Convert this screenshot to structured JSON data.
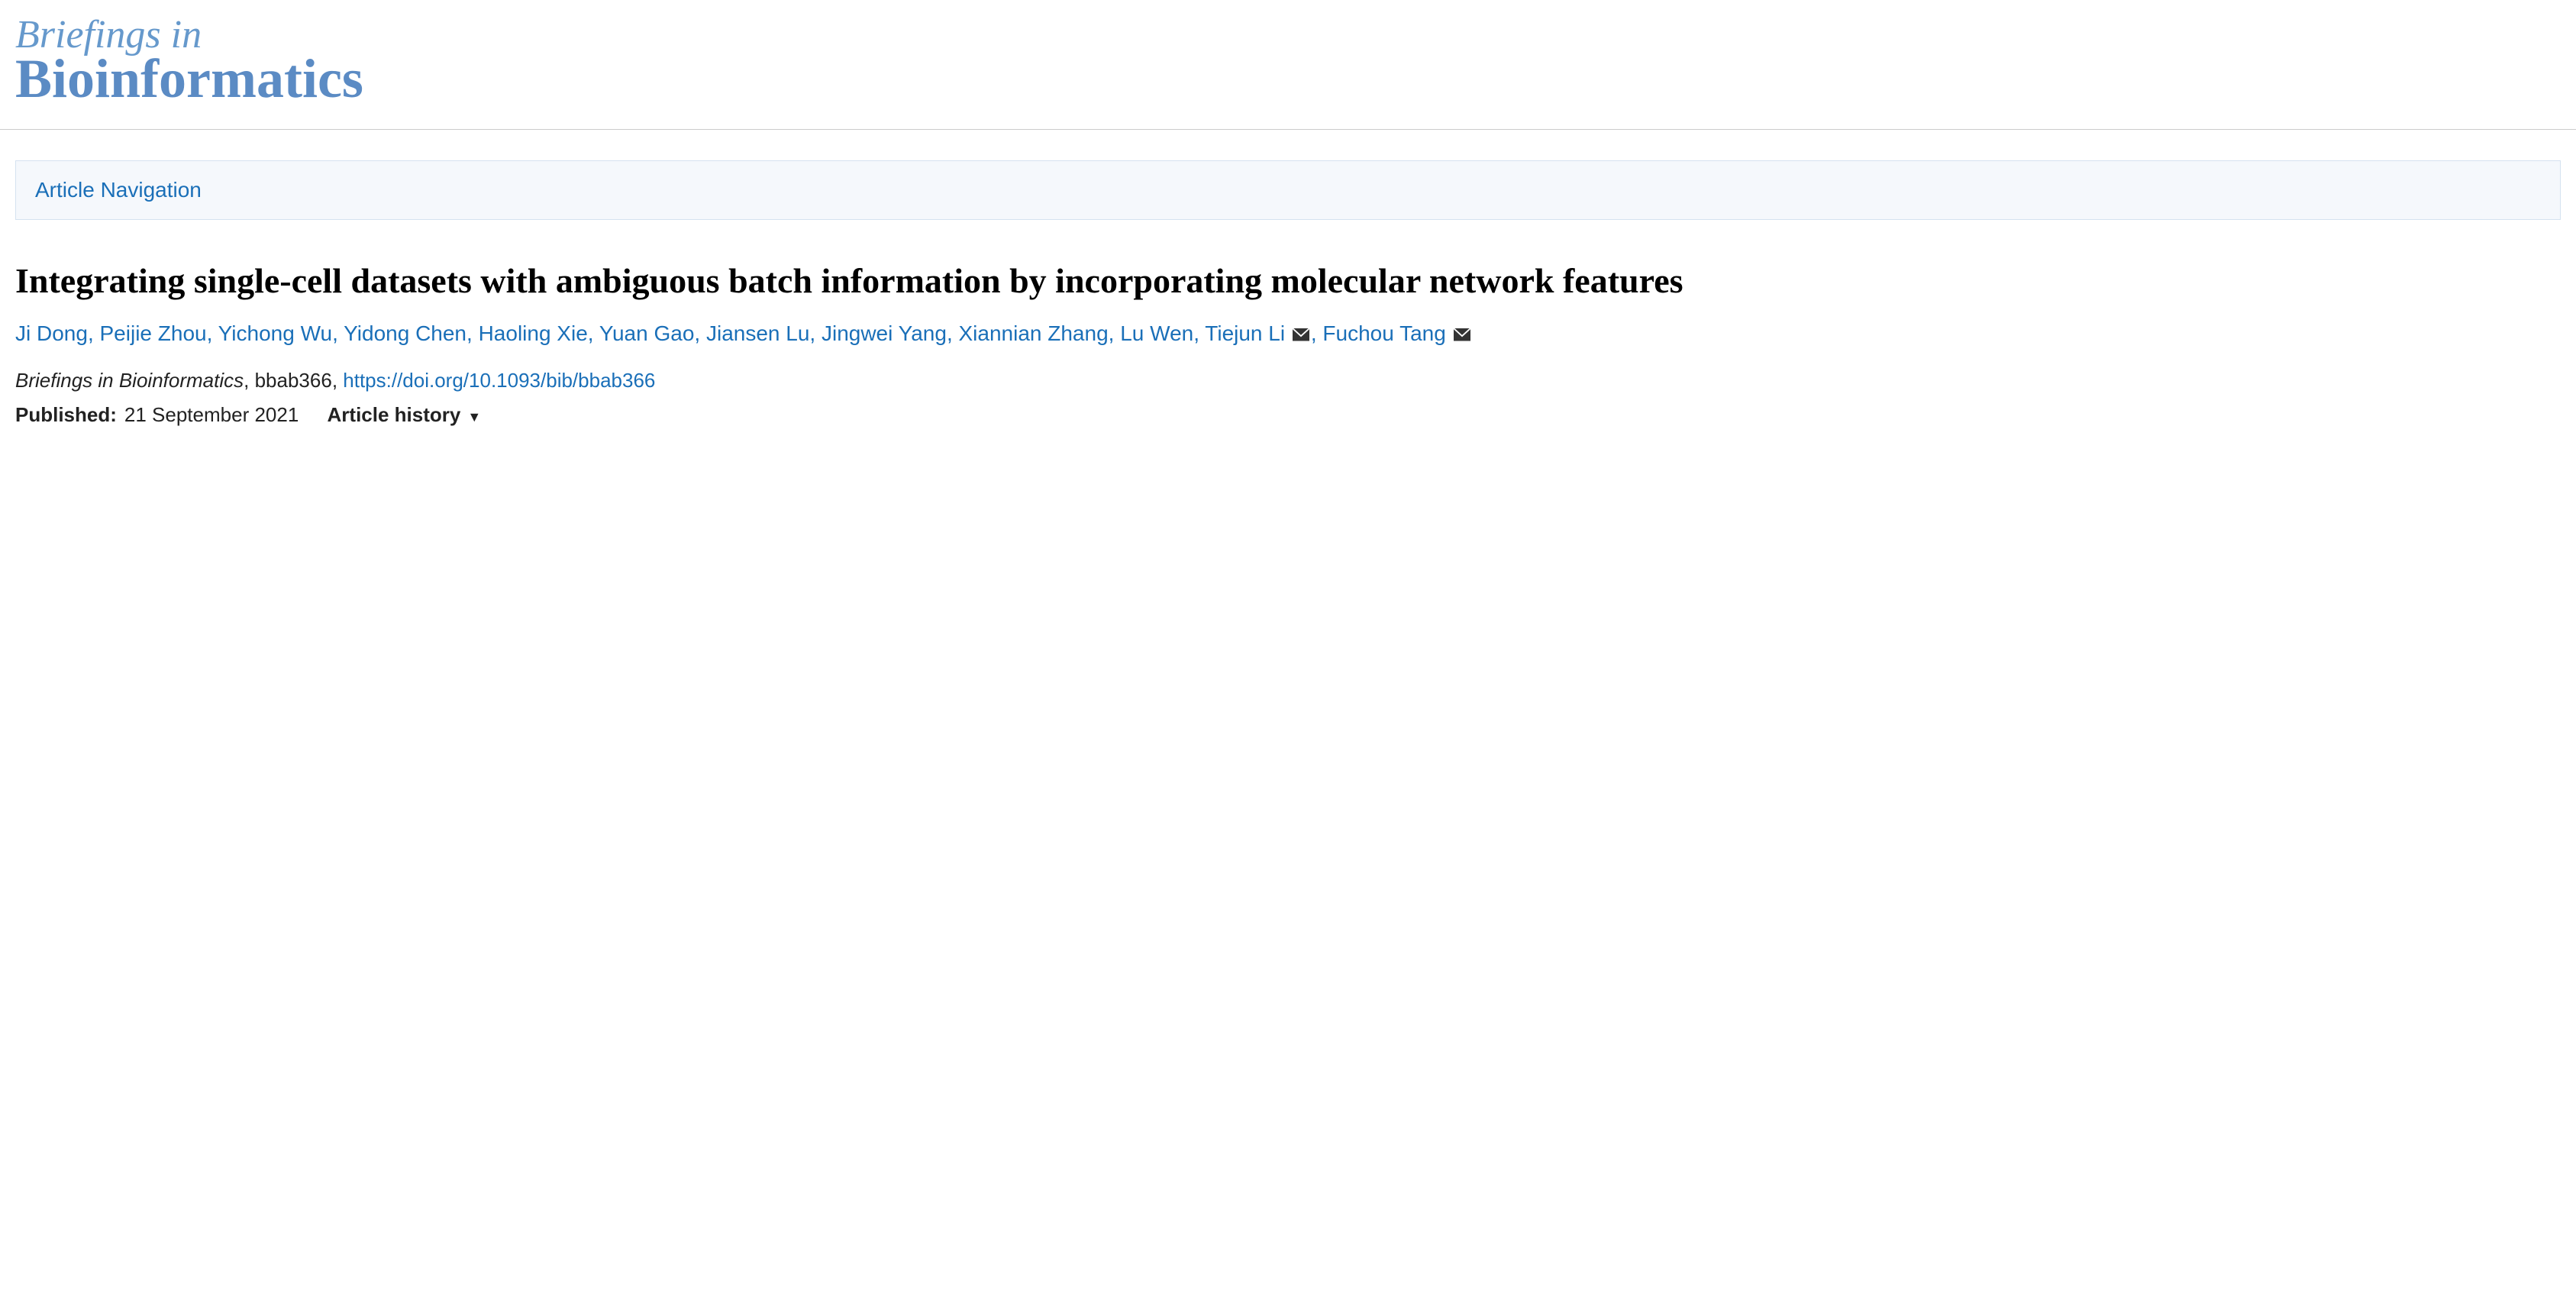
{
  "journal": {
    "logo_line1": "Briefings in",
    "logo_line2": "Bioinformatics",
    "logo_color_light": "#6699cc",
    "logo_color_bold": "#5b8bc4"
  },
  "nav": {
    "label": "Article Navigation"
  },
  "article": {
    "title": "Integrating single-cell datasets with ambiguous batch information by incorporating molecular network features",
    "authors": [
      {
        "name": "Ji Dong",
        "corresponding": false
      },
      {
        "name": "Peijie Zhou",
        "corresponding": false
      },
      {
        "name": "Yichong Wu",
        "corresponding": false
      },
      {
        "name": "Yidong Chen",
        "corresponding": false
      },
      {
        "name": "Haoling Xie",
        "corresponding": false
      },
      {
        "name": "Yuan Gao",
        "corresponding": false
      },
      {
        "name": "Jiansen Lu",
        "corresponding": false
      },
      {
        "name": "Jingwei Yang",
        "corresponding": false
      },
      {
        "name": "Xiannian Zhang",
        "corresponding": false
      },
      {
        "name": "Lu Wen",
        "corresponding": false
      },
      {
        "name": "Tiejun Li",
        "corresponding": true
      },
      {
        "name": "Fuchou Tang",
        "corresponding": true
      }
    ],
    "link_color": "#1a6fb8",
    "citation": {
      "journal": "Briefings in Bioinformatics",
      "article_id": "bbab366",
      "doi_url": "https://doi.org/10.1093/bib/bbab366"
    },
    "published_label": "Published:",
    "published_date": "21 September 2021",
    "history_label": "Article history"
  }
}
